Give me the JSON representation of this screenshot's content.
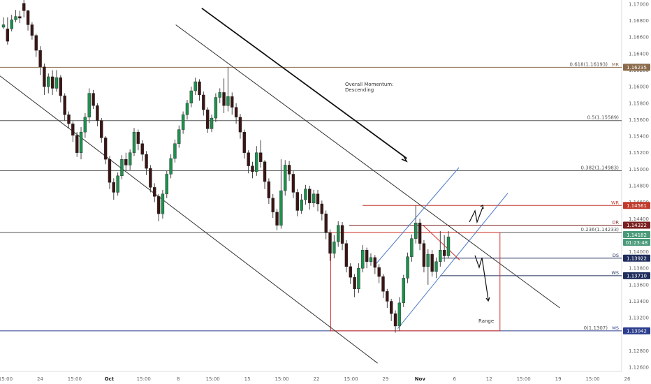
{
  "chart_data": {
    "type": "candlestick",
    "instrument_note": "",
    "y_axis": {
      "range": [
        1.1255,
        1.1705
      ],
      "ticks": [
        "1.17000",
        "1.16800",
        "1.16600",
        "1.16400",
        "1.16200",
        "1.16000",
        "1.15800",
        "1.15600",
        "1.15400",
        "1.15200",
        "1.15000",
        "1.14800",
        "1.14600",
        "1.14400",
        "1.14000",
        "1.13800",
        "1.13600",
        "1.13400",
        "1.13200",
        "1.12800",
        "1.12600"
      ]
    },
    "x_axis": {
      "labels": [
        "15:00",
        "24",
        "15:00",
        "Oct",
        "15:00",
        "8",
        "15:00",
        "15",
        "15:00",
        "22",
        "15:00",
        "29",
        "Nov",
        "6",
        "12",
        "15:00",
        "19",
        "15:00",
        "26"
      ],
      "bold_labels": [
        "Oct",
        "Nov"
      ]
    },
    "levels": [
      {
        "name": "MR",
        "price": 1.16235,
        "badge": "1.16235",
        "color": "#8a6a4a",
        "fib": "0.618(1.16193)"
      },
      {
        "name": "",
        "price": 1.15589,
        "badge": "",
        "color": "#555555",
        "fib": "0.5(1.15589)"
      },
      {
        "name": "",
        "price": 1.14983,
        "badge": "",
        "color": "#555555",
        "fib": "0.382(1.14983)"
      },
      {
        "name": "WR",
        "price": 1.14561,
        "badge": "1.14561",
        "color": "#c0392b",
        "fib": ""
      },
      {
        "name": "DR",
        "price": 1.14322,
        "badge": "1.14322",
        "color": "#7b1f1f",
        "fib": ""
      },
      {
        "name": "",
        "price": 1.14233,
        "badge": "",
        "color": "#555555",
        "fib": "0.236(1.14233)"
      },
      {
        "name": "DS",
        "price": 1.13922,
        "badge": "1.13922",
        "color": "#1f2d5c",
        "fib": ""
      },
      {
        "name": "WS",
        "price": 1.1371,
        "badge": "1.13710",
        "color": "#1f2d5c",
        "fib": ""
      },
      {
        "name": "MS",
        "price": 1.13042,
        "badge": "1.13042",
        "color": "#2c3e8c",
        "fib": "0(1.1307)"
      }
    ],
    "current_price": {
      "value": "1.14182",
      "countdown": "01:23:48",
      "color": "#4a9a7a"
    },
    "annotations": [
      {
        "id": "momentum",
        "lines": [
          "Overall Momentum:",
          "Descending"
        ]
      },
      {
        "id": "range",
        "lines": [
          "Range"
        ]
      }
    ],
    "candles": [
      [
        1.1672,
        1.1675,
        1.167,
        1.1684
      ],
      [
        1.167,
        1.1655,
        1.1651,
        1.1684
      ],
      [
        1.167,
        1.1681,
        1.1667,
        1.1687
      ],
      [
        1.1681,
        1.1685,
        1.1678,
        1.1693
      ],
      [
        1.1685,
        1.1683,
        1.1677,
        1.1692
      ],
      [
        1.1701,
        1.1692,
        1.1684,
        1.1705
      ],
      [
        1.1692,
        1.1675,
        1.1668,
        1.1693
      ],
      [
        1.1675,
        1.1662,
        1.1657,
        1.1678
      ],
      [
        1.1662,
        1.1644,
        1.1636,
        1.1664
      ],
      [
        1.1644,
        1.1624,
        1.1614,
        1.1649
      ],
      [
        1.1624,
        1.16,
        1.159,
        1.1628
      ],
      [
        1.16,
        1.1612,
        1.1592,
        1.1616
      ],
      [
        1.1612,
        1.1598,
        1.159,
        1.162
      ],
      [
        1.1598,
        1.1611,
        1.1594,
        1.162
      ],
      [
        1.1611,
        1.1589,
        1.1581,
        1.1614
      ],
      [
        1.1589,
        1.1566,
        1.1559,
        1.1592
      ],
      [
        1.1566,
        1.1555,
        1.155,
        1.157
      ],
      [
        1.1555,
        1.1541,
        1.1533,
        1.1558
      ],
      [
        1.1541,
        1.152,
        1.1515,
        1.1545
      ],
      [
        1.152,
        1.1545,
        1.1512,
        1.1551
      ],
      [
        1.1545,
        1.1563,
        1.1538,
        1.1568
      ],
      [
        1.1563,
        1.1592,
        1.1556,
        1.1598
      ],
      [
        1.1592,
        1.1577,
        1.1573,
        1.1596
      ],
      [
        1.1577,
        1.1559,
        1.1552,
        1.158
      ],
      [
        1.1559,
        1.1538,
        1.1532,
        1.1562
      ],
      [
        1.1538,
        1.1512,
        1.1506,
        1.154
      ],
      [
        1.1512,
        1.1484,
        1.1476,
        1.1516
      ],
      [
        1.1484,
        1.1472,
        1.1463,
        1.1489
      ],
      [
        1.1472,
        1.1492,
        1.1468,
        1.1496
      ],
      [
        1.1492,
        1.1512,
        1.1488,
        1.1517
      ],
      [
        1.1512,
        1.1505,
        1.1498,
        1.152
      ],
      [
        1.1505,
        1.152,
        1.1499,
        1.1524
      ],
      [
        1.152,
        1.1545,
        1.1516,
        1.155
      ],
      [
        1.1545,
        1.1531,
        1.1523,
        1.1548
      ],
      [
        1.1531,
        1.1518,
        1.151,
        1.1535
      ],
      [
        1.1518,
        1.1501,
        1.1493,
        1.1522
      ],
      [
        1.1501,
        1.1478,
        1.1472,
        1.1505
      ],
      [
        1.1478,
        1.1467,
        1.146,
        1.1483
      ],
      [
        1.1467,
        1.1446,
        1.1437,
        1.147
      ],
      [
        1.1446,
        1.147,
        1.144,
        1.1475
      ],
      [
        1.147,
        1.1494,
        1.1465,
        1.1498
      ],
      [
        1.1494,
        1.1513,
        1.1489,
        1.1518
      ],
      [
        1.1513,
        1.1531,
        1.1508,
        1.1536
      ],
      [
        1.1531,
        1.1548,
        1.1526,
        1.1553
      ],
      [
        1.1548,
        1.1566,
        1.1543,
        1.157
      ],
      [
        1.1566,
        1.158,
        1.156,
        1.1584
      ],
      [
        1.158,
        1.1595,
        1.1575,
        1.16
      ],
      [
        1.1595,
        1.1606,
        1.159,
        1.1611
      ],
      [
        1.1606,
        1.159,
        1.1583,
        1.1609
      ],
      [
        1.159,
        1.1572,
        1.1565,
        1.1594
      ],
      [
        1.1572,
        1.1549,
        1.1544,
        1.1575
      ],
      [
        1.1549,
        1.1562,
        1.1545,
        1.1566
      ],
      [
        1.1562,
        1.1587,
        1.1557,
        1.1592
      ],
      [
        1.1587,
        1.1593,
        1.158,
        1.1598
      ],
      [
        1.1593,
        1.1577,
        1.1568,
        1.161
      ],
      [
        1.1577,
        1.1588,
        1.157,
        1.1624
      ],
      [
        1.1588,
        1.1575,
        1.1566,
        1.1593
      ],
      [
        1.1575,
        1.1563,
        1.1555,
        1.158
      ],
      [
        1.1563,
        1.1545,
        1.1537,
        1.1567
      ],
      [
        1.1545,
        1.152,
        1.1513,
        1.1548
      ],
      [
        1.152,
        1.1504,
        1.1495,
        1.1523
      ],
      [
        1.1504,
        1.1497,
        1.1489,
        1.1509
      ],
      [
        1.1497,
        1.152,
        1.1492,
        1.1528
      ],
      [
        1.152,
        1.1509,
        1.1502,
        1.1535
      ],
      [
        1.1509,
        1.1485,
        1.1476,
        1.1511
      ],
      [
        1.1485,
        1.1465,
        1.1458,
        1.1489
      ],
      [
        1.1465,
        1.1448,
        1.1441,
        1.147
      ],
      [
        1.1448,
        1.1432,
        1.1426,
        1.1452
      ],
      [
        1.1432,
        1.1474,
        1.1428,
        1.1512
      ],
      [
        1.1474,
        1.1505,
        1.1468,
        1.1511
      ],
      [
        1.1505,
        1.1494,
        1.1486,
        1.151
      ],
      [
        1.1494,
        1.1472,
        1.1465,
        1.1498
      ],
      [
        1.1472,
        1.145,
        1.1443,
        1.1476
      ],
      [
        1.145,
        1.1463,
        1.1446,
        1.147
      ],
      [
        1.1463,
        1.1476,
        1.1457,
        1.1481
      ],
      [
        1.1476,
        1.1459,
        1.1451,
        1.148
      ],
      [
        1.1459,
        1.147,
        1.1454,
        1.1475
      ],
      [
        1.147,
        1.1458,
        1.1449,
        1.1475
      ],
      [
        1.1458,
        1.1446,
        1.1438,
        1.1462
      ],
      [
        1.1446,
        1.1423,
        1.1415,
        1.145
      ],
      [
        1.1423,
        1.1398,
        1.1389,
        1.1427
      ],
      [
        1.1398,
        1.1412,
        1.1392,
        1.142
      ],
      [
        1.1412,
        1.1432,
        1.1406,
        1.1437
      ],
      [
        1.1432,
        1.141,
        1.1402,
        1.1436
      ],
      [
        1.141,
        1.1382,
        1.1375,
        1.1414
      ],
      [
        1.1382,
        1.1369,
        1.1361,
        1.1386
      ],
      [
        1.1369,
        1.1355,
        1.1345,
        1.1373
      ],
      [
        1.1355,
        1.138,
        1.135,
        1.1386
      ],
      [
        1.138,
        1.1402,
        1.1375,
        1.1408
      ],
      [
        1.1402,
        1.1388,
        1.138,
        1.1405
      ],
      [
        1.1388,
        1.1393,
        1.1383,
        1.1398
      ],
      [
        1.1393,
        1.1381,
        1.1373,
        1.1396
      ],
      [
        1.1381,
        1.137,
        1.1362,
        1.1385
      ],
      [
        1.137,
        1.1352,
        1.1344,
        1.1373
      ],
      [
        1.1352,
        1.134,
        1.1332,
        1.1355
      ],
      [
        1.134,
        1.1325,
        1.1316,
        1.1343
      ],
      [
        1.1325,
        1.131,
        1.1302,
        1.1329
      ],
      [
        1.131,
        1.1338,
        1.1304,
        1.1345
      ],
      [
        1.1338,
        1.1368,
        1.1333,
        1.1372
      ],
      [
        1.1368,
        1.1394,
        1.1362,
        1.1399
      ],
      [
        1.1394,
        1.1416,
        1.1388,
        1.1421
      ],
      [
        1.1416,
        1.1435,
        1.141,
        1.1456
      ],
      [
        1.1435,
        1.141,
        1.1402,
        1.144
      ],
      [
        1.141,
        1.1382,
        1.1375,
        1.1414
      ],
      [
        1.1382,
        1.1397,
        1.136,
        1.1403
      ],
      [
        1.1397,
        1.1376,
        1.137,
        1.1402
      ],
      [
        1.1376,
        1.1388,
        1.1368,
        1.1393
      ],
      [
        1.1388,
        1.1402,
        1.1382,
        1.1425
      ],
      [
        1.1402,
        1.1395,
        1.1388,
        1.142
      ],
      [
        1.1395,
        1.1418,
        1.1392,
        1.1425
      ]
    ],
    "trend_lines": [
      {
        "id": "upper-descending-channel",
        "p1": [
          1.1675,
          0.27
        ],
        "p2": [
          1.1332,
          0.86
        ],
        "color": "#333"
      },
      {
        "id": "lower-descending-channel",
        "p1": [
          1.1613,
          0.0
        ],
        "p2": [
          1.1265,
          0.58
        ],
        "color": "#333"
      },
      {
        "id": "momentum-arrow",
        "p1": [
          1.1695,
          0.31
        ],
        "p2": [
          1.1513,
          0.625
        ],
        "color": "#111"
      },
      {
        "id": "ascending-channel-top",
        "p1": [
          1.1383,
          0.575
        ],
        "p2": [
          1.1502,
          0.705
        ],
        "color": "#4a78c8"
      },
      {
        "id": "ascending-channel-bottom",
        "p1": [
          1.1307,
          0.611
        ],
        "p2": [
          1.1471,
          0.78
        ],
        "color": "#4a78c8"
      },
      {
        "id": "red-diag",
        "p1": [
          1.1432,
          0.65
        ],
        "p2": [
          1.139,
          0.706
        ],
        "color": "#d0302b"
      }
    ],
    "range_box": {
      "top": 1.14233,
      "bottom": 1.13042,
      "x_start": 0.508,
      "x_end": 0.768,
      "color": "#d0302b"
    }
  }
}
